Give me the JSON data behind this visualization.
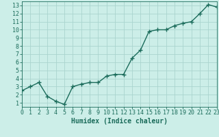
{
  "x": [
    0,
    1,
    2,
    3,
    4,
    5,
    6,
    7,
    8,
    9,
    10,
    11,
    12,
    13,
    14,
    15,
    16,
    17,
    18,
    19,
    20,
    21,
    22,
    23
  ],
  "y": [
    2.5,
    3.0,
    3.5,
    1.8,
    1.2,
    0.8,
    3.0,
    3.3,
    3.5,
    3.5,
    4.3,
    4.5,
    4.5,
    6.5,
    7.5,
    9.8,
    10.0,
    10.0,
    10.5,
    10.8,
    11.0,
    12.0,
    13.1,
    12.8
  ],
  "line_color": "#1a6b5a",
  "marker": "+",
  "markersize": 4,
  "linewidth": 1.0,
  "xlabel": "Humidex (Indice chaleur)",
  "xlabel_fontsize": 7,
  "bg_color": "#cceee8",
  "grid_color": "#aad4ce",
  "tick_color": "#1a6b5a",
  "xlim": [
    0,
    23
  ],
  "ylim": [
    0.5,
    13.5
  ],
  "yticks": [
    1,
    2,
    3,
    4,
    5,
    6,
    7,
    8,
    9,
    10,
    11,
    12,
    13
  ],
  "xticks": [
    0,
    1,
    2,
    3,
    4,
    5,
    6,
    7,
    8,
    9,
    10,
    11,
    12,
    13,
    14,
    15,
    16,
    17,
    18,
    19,
    20,
    21,
    22,
    23
  ],
  "tick_fontsize": 6,
  "ylabel_fontsize": 6
}
